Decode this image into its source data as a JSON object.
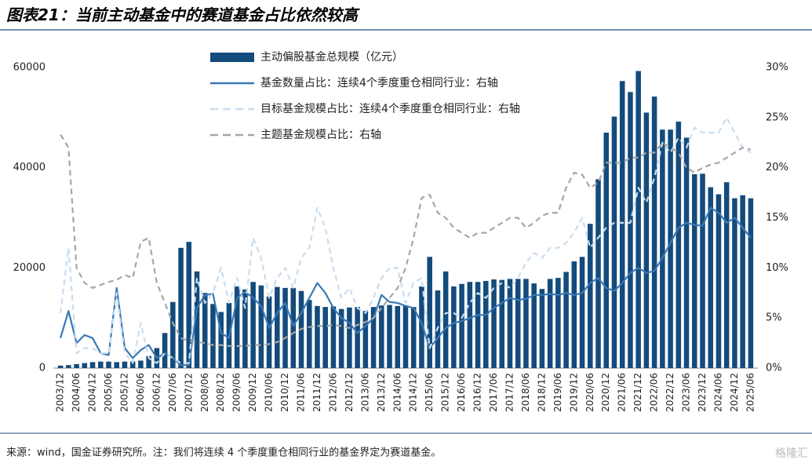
{
  "title": "图表21：当前主动基金中的赛道基金占比依然较高",
  "source": "来源：wind，国金证券研究所。注：我们将连续 4 个季度重仓相同行业的基金界定为赛道基金。",
  "watermark": "格隆汇",
  "chart_data": {
    "type": "bar-line",
    "categories": [
      "2003/12",
      null,
      "2004/06",
      null,
      "2004/12",
      null,
      "2005/06",
      null,
      "2005/12",
      null,
      "2006/06",
      null,
      "2006/12",
      null,
      "2007/06",
      null,
      "2007/12",
      null,
      "2008/06",
      null,
      "2008/12",
      null,
      "2009/06",
      null,
      "2009/12",
      null,
      "2010/06",
      null,
      "2010/12",
      null,
      "2011/06",
      null,
      "2011/12",
      null,
      "2012/06",
      null,
      "2012/12",
      null,
      "2013/06",
      null,
      "2013/12",
      null,
      "2014/06",
      null,
      "2014/12",
      null,
      "2015/06",
      null,
      "2015/12",
      null,
      "2016/06",
      null,
      "2016/12",
      null,
      "2017/06",
      null,
      "2017/12",
      null,
      "2018/06",
      null,
      "2018/12",
      null,
      "2019/06",
      null,
      "2019/12",
      null,
      "2020/06",
      null,
      "2020/12",
      null,
      "2021/06",
      null,
      "2021/12",
      null,
      "2022/06",
      null,
      "2022/12",
      null,
      "2023/06",
      null,
      "2023/12",
      null,
      "2024/06",
      null,
      "2024/12",
      null,
      "2025/06"
    ],
    "ylim": [
      0,
      60000
    ],
    "yticks": [
      0,
      20000,
      40000,
      60000
    ],
    "y2lim": [
      0,
      30
    ],
    "y2ticks": [
      {
        "value": 0,
        "label": "0%"
      },
      {
        "value": 5,
        "label": "5%"
      },
      {
        "value": 10,
        "label": "10%"
      },
      {
        "value": 15,
        "label": "15%"
      },
      {
        "value": 20,
        "label": "20%"
      },
      {
        "value": 25,
        "label": "25%"
      },
      {
        "value": 30,
        "label": "30%"
      }
    ],
    "grid": false,
    "series": [
      {
        "name": "主动偏股基金总规模（亿元）",
        "type": "bar",
        "color": "#134b7c",
        "values": [
          500,
          600,
          800,
          1000,
          1200,
          1300,
          1300,
          1200,
          1300,
          1300,
          1500,
          2400,
          4000,
          7000,
          13200,
          24000,
          25200,
          19300,
          15000,
          12800,
          11200,
          13000,
          16300,
          15700,
          17200,
          16500,
          14300,
          16200,
          16000,
          16000,
          15400,
          13600,
          12400,
          12200,
          12300,
          11800,
          12100,
          12200,
          11400,
          12200,
          12500,
          12600,
          12400,
          12500,
          12200,
          16300,
          22200,
          15500,
          19300,
          16300,
          16800,
          17200,
          17200,
          17400,
          17700,
          17600,
          17800,
          17800,
          17800,
          16900,
          15800,
          17800,
          18000,
          19200,
          21300,
          22200,
          28800,
          37700,
          47000,
          50200,
          57300,
          55100,
          59300,
          51000,
          54200,
          47600,
          47600,
          49200,
          46000,
          38700,
          38800,
          36100,
          34700,
          37100,
          33900,
          34500,
          33900
        ]
      },
      {
        "name": "基金数量占比：连续4个季度重仓相同行业：右轴",
        "type": "line",
        "axis": "y2",
        "color": "#3a78b5",
        "linestyle": "solid",
        "values": [
          3.0,
          5.7,
          2.5,
          3.3,
          3.0,
          1.5,
          1.3,
          8.0,
          2.0,
          1.0,
          1.8,
          2.3,
          1.0,
          1.5,
          1.0,
          0.3,
          0.3,
          6.0,
          7.3,
          7.4,
          3.5,
          3.0,
          7.0,
          7.6,
          7.0,
          6.2,
          4.0,
          5.5,
          6.5,
          4.2,
          5.5,
          7.0,
          8.5,
          7.5,
          6.0,
          5.0,
          4.5,
          3.5,
          4.2,
          5.0,
          7.3,
          6.6,
          6.5,
          6.2,
          6.0,
          4.5,
          2.0,
          3.0,
          4.0,
          4.5,
          4.7,
          5.0,
          5.3,
          5.3,
          6.0,
          6.5,
          7.0,
          6.8,
          6.9,
          7.3,
          7.3,
          7.4,
          7.3,
          7.5,
          7.3,
          7.5,
          8.5,
          9.0,
          8.0,
          7.7,
          8.5,
          9.5,
          10.0,
          9.5,
          9.7,
          11.0,
          12.5,
          14.0,
          14.5,
          14.3,
          14.2,
          16.0,
          15.5,
          14.5,
          15.0,
          14.0,
          13.0
        ]
      },
      {
        "name": "目标基金规模占比：连续4个季度重仓相同行业：右轴",
        "type": "line",
        "axis": "y2",
        "color": "#c8ddef",
        "linestyle": "dashed",
        "values": [
          5.5,
          12.0,
          1.5,
          2.0,
          2.0,
          1.5,
          1.5,
          7.5,
          1.5,
          0.5,
          4.5,
          1.0,
          0.5,
          1.5,
          1.0,
          0.5,
          0.5,
          9.0,
          6.5,
          7.5,
          10.0,
          6.5,
          9.0,
          6.0,
          13.0,
          11.0,
          7.0,
          9.0,
          10.0,
          8.0,
          11.0,
          12.0,
          16.0,
          14.0,
          10.0,
          7.0,
          8.0,
          6.0,
          5.5,
          7.0,
          9.0,
          10.0,
          10.0,
          6.5,
          8.5,
          9.0,
          2.0,
          4.0,
          5.5,
          5.5,
          5.0,
          6.5,
          7.5,
          7.0,
          8.0,
          8.5,
          8.0,
          9.0,
          10.5,
          11.5,
          11.0,
          12.0,
          12.0,
          12.5,
          13.5,
          15.0,
          12.0,
          13.0,
          14.0,
          14.5,
          14.5,
          14.5,
          18.0,
          16.5,
          19.0,
          22.5,
          21.5,
          23.0,
          22.0,
          24.0,
          23.5,
          23.5,
          23.5,
          25.0,
          23.5,
          22.0,
          21.5
        ]
      },
      {
        "name": "主题基金规模占比：右轴",
        "type": "line",
        "axis": "y2",
        "color": "#a6a6a6",
        "linestyle": "dashed",
        "values": [
          23.3,
          22,
          10,
          8.5,
          8,
          8.3,
          8.6,
          8.8,
          9.3,
          9.0,
          12.6,
          13,
          8.5,
          6.5,
          4.5,
          3,
          2.7,
          2.6,
          2.5,
          2.3,
          2.3,
          2.2,
          2.2,
          2.2,
          2.3,
          2.3,
          2.4,
          2.6,
          3.0,
          3.5,
          3.9,
          4.1,
          4.2,
          4.2,
          4.3,
          4.2,
          4.0,
          4.3,
          4.6,
          5.0,
          6.0,
          7.0,
          8.0,
          10.0,
          13.0,
          17.0,
          17.3,
          15.5,
          15.0,
          14.0,
          13.5,
          13.0,
          13.5,
          13.5,
          14.0,
          14.5,
          15.0,
          15.0,
          14.0,
          14.5,
          15.2,
          15.5,
          15.5,
          18.0,
          19.5,
          19.3,
          18.0,
          18.5,
          20.5,
          20.5,
          20.5,
          21.0,
          21.0,
          21.5,
          21.5,
          22.5,
          22.0,
          21.5,
          20.0,
          19.5,
          20.0,
          20.3,
          20.5,
          21.0,
          21.5,
          22.0,
          21.8
        ]
      }
    ]
  }
}
